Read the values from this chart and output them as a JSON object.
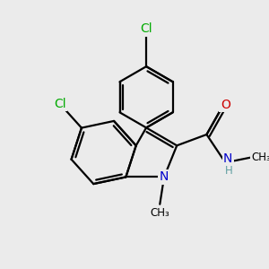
{
  "background_color": "#ebebeb",
  "atom_colors": {
    "C": "#000000",
    "N": "#0000cc",
    "O": "#cc0000",
    "Cl": "#00aa00",
    "H": "#5f9ea0"
  },
  "bond_color": "#000000",
  "bond_width": 1.6,
  "font_size_atoms": 10,
  "font_size_small": 8.5
}
